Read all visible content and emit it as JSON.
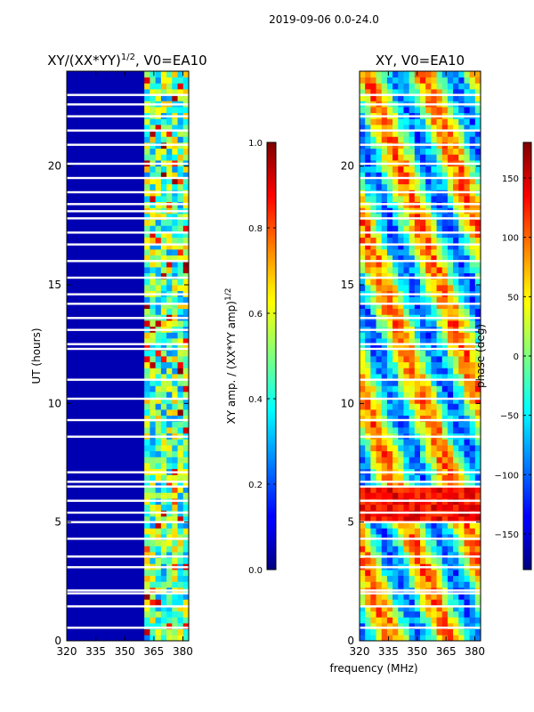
{
  "figure": {
    "suptitle": "2019-09-06 0.0-24.0",
    "xlabel": "frequency (MHz)"
  },
  "chart_data": [
    {
      "type": "heatmap",
      "title_main": "XY/(XX*YY)",
      "title_sup": "1/2",
      "title_rest": ", V0=EA10",
      "xlabel": "",
      "ylabel": "UT (hours)",
      "xlim": [
        320,
        383
      ],
      "ylim": [
        0,
        24
      ],
      "xticks": [
        "320",
        "335",
        "350",
        "365",
        "380"
      ],
      "xtick_values": [
        320,
        335,
        350,
        365,
        380
      ],
      "yticks": [
        "0",
        "5",
        "10",
        "15",
        "20"
      ],
      "ytick_values": [
        0,
        5,
        10,
        15,
        20
      ],
      "colormap": "jet",
      "background_level": 0.05,
      "bright_band_mhz": [
        359.5,
        383
      ],
      "colorbar": {
        "label_main": "XY amp. / (XX*YY amp)",
        "label_sup": "1/2",
        "range": [
          0.0,
          1.0
        ],
        "ticks": [
          "0.0",
          "0.2",
          "0.4",
          "0.6",
          "0.8",
          "1.0"
        ],
        "tick_values": [
          0.0,
          0.2,
          0.4,
          0.6,
          0.8,
          1.0
        ]
      }
    },
    {
      "type": "heatmap",
      "title": "XY, V0=EA10",
      "xlabel": "",
      "ylabel": "",
      "xlim": [
        320,
        383
      ],
      "ylim": [
        0,
        24
      ],
      "xticks": [
        "320",
        "335",
        "350",
        "365",
        "380"
      ],
      "xtick_values": [
        320,
        335,
        350,
        365,
        380
      ],
      "yticks": [
        "0",
        "5",
        "10",
        "15",
        "20"
      ],
      "ytick_values": [
        0,
        5,
        10,
        15,
        20
      ],
      "colormap": "jet",
      "colorbar": {
        "label": "phase (deg)",
        "range": [
          -180,
          180
        ],
        "ticks": [
          "−150",
          "−100",
          "−50",
          "0",
          "50",
          "100",
          "150"
        ],
        "tick_values": [
          -150,
          -100,
          -50,
          0,
          50,
          100,
          150
        ]
      }
    }
  ],
  "flagged_gaps_hours": [
    0.55,
    1.45,
    2.0,
    2.12,
    3.1,
    3.55,
    4.3,
    5.0,
    5.4,
    5.9,
    6.5,
    6.7,
    7.1,
    8.6,
    9.3,
    10.2,
    11.0,
    12.3,
    12.5,
    13.1,
    13.6,
    14.2,
    14.6,
    15.3,
    16.0,
    16.7,
    17.2,
    17.8,
    18.1,
    18.4,
    18.9,
    19.5,
    20.1,
    20.9,
    21.5,
    22.1,
    22.6,
    23.0
  ]
}
